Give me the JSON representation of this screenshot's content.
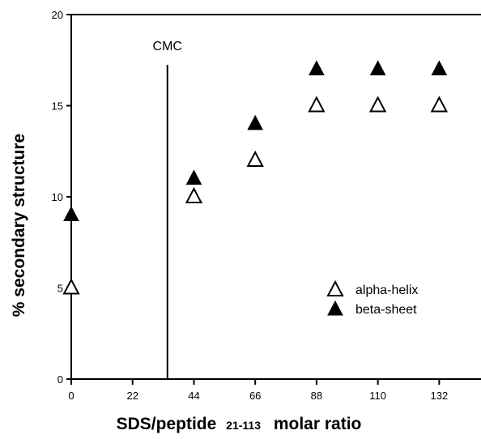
{
  "chart_data": {
    "type": "scatter",
    "title": "",
    "xlabel": "SDS/peptide",
    "xlabel_subscript": "21-113",
    "xlabel_suffix": "molar ratio",
    "ylabel": "% secondary structure",
    "xlim": [
      0,
      147
    ],
    "ylim": [
      0,
      20
    ],
    "x_ticks": [
      0,
      22,
      44,
      66,
      88,
      110,
      132
    ],
    "x_tick_labels": [
      "0",
      "22",
      "44",
      "66",
      "88",
      "110",
      "132"
    ],
    "y_ticks": [
      0,
      5,
      10,
      15,
      20
    ],
    "y_tick_labels": [
      "0",
      "5",
      "10",
      "15",
      "20"
    ],
    "grid": false,
    "legend_position": "bottom-right",
    "series": [
      {
        "name": "alpha-helix",
        "marker": "open-triangle",
        "x": [
          0,
          44,
          66,
          88,
          110,
          132
        ],
        "y": [
          5,
          10,
          12,
          15,
          15,
          15
        ]
      },
      {
        "name": "beta-sheet",
        "marker": "filled-triangle",
        "x": [
          0,
          44,
          66,
          88,
          110,
          132
        ],
        "y": [
          9,
          11,
          14,
          17,
          17,
          17
        ]
      }
    ],
    "annotations": [
      {
        "label": "CMC",
        "type": "vertical-line",
        "x": 34.5
      }
    ],
    "colors": {
      "axis": "#000000",
      "marker": "#000000",
      "background": "#ffffff"
    }
  }
}
